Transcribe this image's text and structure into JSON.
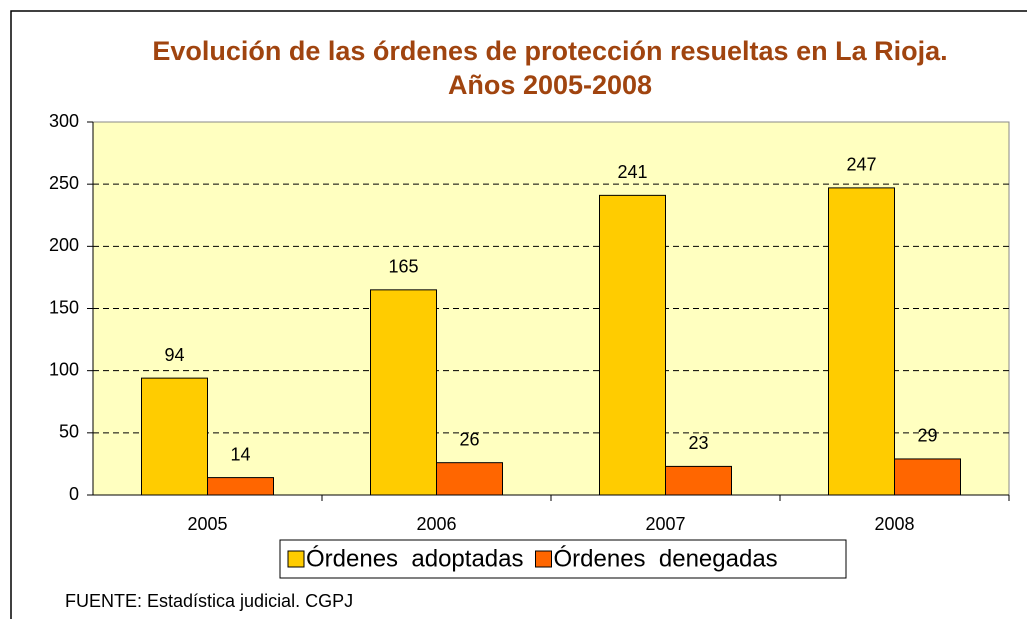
{
  "chart_data": {
    "type": "bar",
    "title": "Evolución de las órdenes de protección resueltas en La Rioja. Años 2005-2008",
    "categories": [
      "2005",
      "2006",
      "2007",
      "2008"
    ],
    "series": [
      {
        "name": "Órdenes  adoptadas",
        "color": "#ffcc00",
        "values": [
          94,
          165,
          241,
          247
        ]
      },
      {
        "name": "Órdenes  denegadas",
        "color": "#ff6600",
        "values": [
          14,
          26,
          23,
          29
        ]
      }
    ],
    "ylim": [
      0,
      300
    ],
    "yticks": [
      0,
      50,
      100,
      150,
      200,
      250,
      300
    ],
    "grid": true,
    "legend": "bottom",
    "source": "FUENTE: Estadística judicial. CGPJ"
  }
}
